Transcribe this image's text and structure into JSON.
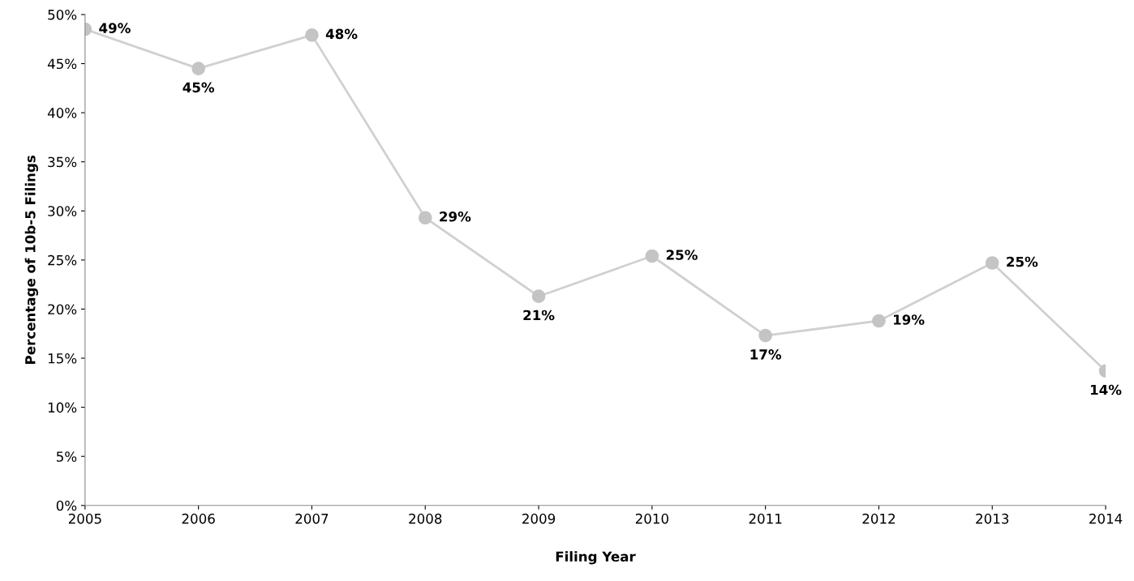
{
  "chart_data": {
    "type": "line",
    "xlabel": "Filing Year",
    "ylabel": "Percentage of 10b-5 Filings",
    "categories": [
      "2005",
      "2006",
      "2007",
      "2008",
      "2009",
      "2010",
      "2011",
      "2012",
      "2013",
      "2014"
    ],
    "series": [
      {
        "color": "#d0d0d0",
        "values": [
          48.5,
          44.5,
          47.9,
          29.3,
          21.3,
          25.4,
          17.3,
          18.8,
          24.7,
          13.7
        ],
        "value_labels": [
          "49%",
          "45%",
          "48%",
          "29%",
          "21%",
          "25%",
          "17%",
          "19%",
          "25%",
          "14%"
        ]
      }
    ],
    "ylim": [
      0,
      50
    ],
    "yticks": [
      {
        "value": 0,
        "label": "0%"
      },
      {
        "value": 5,
        "label": "5%"
      },
      {
        "value": 10,
        "label": "10%"
      },
      {
        "value": 15,
        "label": "15%"
      },
      {
        "value": 20,
        "label": "20%"
      },
      {
        "value": 25,
        "label": "25%"
      },
      {
        "value": 30,
        "label": "30%"
      },
      {
        "value": 35,
        "label": "35%"
      },
      {
        "value": 40,
        "label": "40%"
      },
      {
        "value": 45,
        "label": "45%"
      },
      {
        "value": 50,
        "label": "50%"
      }
    ],
    "grid": false,
    "marker": "circle",
    "line_style": "solid"
  }
}
